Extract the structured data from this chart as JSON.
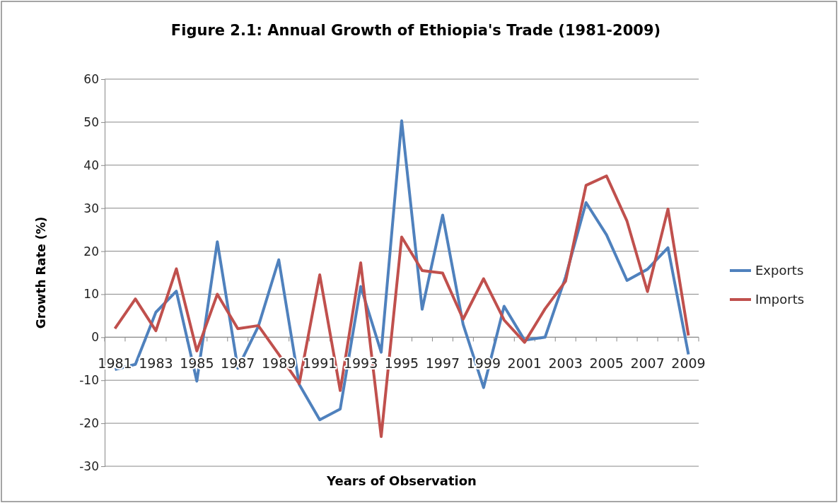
{
  "chart_data": {
    "type": "line",
    "title": "Figure 2.1: Annual Growth of Ethiopia's Trade (1981-2009)",
    "xlabel": "Years of Observation",
    "ylabel": "Growth Rate (%)",
    "categories": [
      "1981",
      null,
      "1983",
      null,
      "1985",
      null,
      "1987",
      null,
      "1989",
      null,
      "1991",
      null,
      "1993",
      null,
      "1995",
      null,
      "1997",
      null,
      "1999",
      null,
      "2001",
      null,
      "2003",
      null,
      "2005",
      null,
      "2007",
      null,
      "2009"
    ],
    "series": [
      {
        "name": "Exports",
        "color": "#4f81bd",
        "values": [
          -7.5,
          -6.3,
          5.8,
          10.7,
          -10.2,
          22.2,
          -7.2,
          2.5,
          18,
          -11,
          -19.2,
          -16.7,
          11.8,
          -3.5,
          50.3,
          6.5,
          28.4,
          3,
          -11.7,
          7.2,
          -0.7,
          0,
          14,
          31.3,
          23.8,
          13.2,
          15.8,
          20.8,
          -4
        ]
      },
      {
        "name": "Imports",
        "color": "#c0504d",
        "values": [
          2,
          8.9,
          1.5,
          15.9,
          -3.2,
          10,
          2,
          2.7,
          -4,
          -10.8,
          14.5,
          -12.4,
          17.3,
          -23.1,
          23.3,
          15.5,
          14.9,
          4.2,
          13.6,
          4,
          -1.2,
          6.6,
          13,
          35.3,
          37.5,
          27,
          10.6,
          29.8,
          0.4
        ]
      }
    ],
    "ylim": [
      -30,
      60
    ],
    "yticks": [
      -30,
      -20,
      -10,
      0,
      10,
      20,
      30,
      40,
      50,
      60
    ],
    "grid": "y",
    "legend": "right",
    "marker": "none",
    "line_style": "solid"
  }
}
